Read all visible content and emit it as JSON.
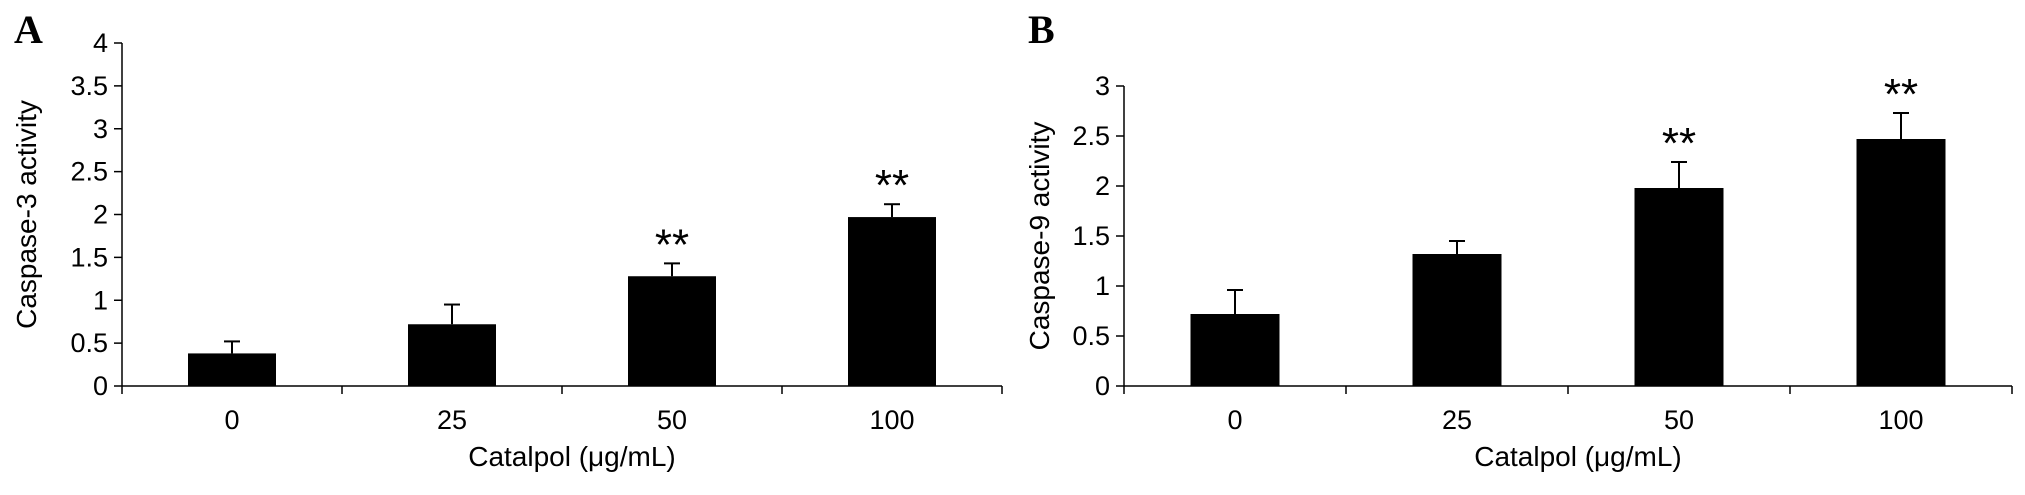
{
  "chart_data": [
    {
      "panel_label": "A",
      "type": "bar",
      "xlabel": "Catalpol (μg/mL)",
      "ylabel": "Caspase-3 activity",
      "categories": [
        "0",
        "25",
        "50",
        "100"
      ],
      "values": [
        0.38,
        0.72,
        1.28,
        1.97
      ],
      "errors": [
        0.14,
        0.23,
        0.15,
        0.15
      ],
      "significance": [
        "",
        "",
        "**",
        "**"
      ],
      "ylim": [
        0,
        4
      ],
      "yticks": [
        0,
        0.5,
        1,
        1.5,
        2,
        2.5,
        3,
        3.5,
        4
      ],
      "ytick_labels": [
        "0",
        "0.5",
        "1",
        "1.5",
        "2",
        "2.5",
        "3",
        "3.5",
        "4"
      ],
      "grid": false,
      "bar_color": "#000000"
    },
    {
      "panel_label": "B",
      "type": "bar",
      "xlabel": "Catalpol (μg/mL)",
      "ylabel": "Caspase-9 activity",
      "categories": [
        "0",
        "25",
        "50",
        "100"
      ],
      "values": [
        0.72,
        1.32,
        1.98,
        2.47
      ],
      "errors": [
        0.24,
        0.13,
        0.26,
        0.26
      ],
      "significance": [
        "",
        "",
        "**",
        "**"
      ],
      "ylim": [
        0,
        3
      ],
      "yticks": [
        0,
        0.5,
        1,
        1.5,
        2,
        2.5,
        3
      ],
      "ytick_labels": [
        "0",
        "0.5",
        "1",
        "1.5",
        "2",
        "2.5",
        "3"
      ],
      "grid": false,
      "bar_color": "#000000"
    }
  ]
}
